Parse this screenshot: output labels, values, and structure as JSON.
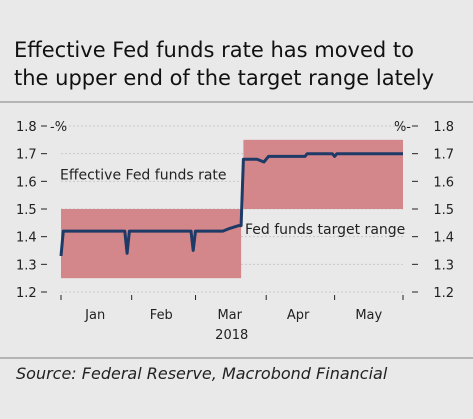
{
  "title": {
    "line1": "Effective Fed funds rate has moved to",
    "line2": "the upper end of the target range lately"
  },
  "source": "Source: Federal Reserve, Macrobond Financial",
  "colors": {
    "background": "#e9e9e9",
    "target_band": "#d4878a",
    "effr_line": "#1e3a66",
    "label_red": "#c0232a",
    "label_blue": "#1e3a66"
  },
  "chart_data": {
    "type": "line",
    "year_label": "2018",
    "x_labels": [
      "Jan",
      "Feb",
      "Mar",
      "Apr",
      "May"
    ],
    "y_ticks": [
      "1.2",
      "1.3",
      "1.4",
      "1.5",
      "1.6",
      "1.7",
      "1.8"
    ],
    "left_axis_unit": "-%",
    "right_axis_unit": "%-",
    "ylim": [
      1.2,
      1.8
    ],
    "x_range": [
      "2018-01-01",
      "2018-05-31"
    ],
    "grid": true,
    "series": [
      {
        "name": "Effective Fed funds rate",
        "kind": "line",
        "points": [
          [
            "2018-01-01",
            1.33
          ],
          [
            "2018-01-02",
            1.42
          ],
          [
            "2018-01-29",
            1.42
          ],
          [
            "2018-01-30",
            1.34
          ],
          [
            "2018-01-31",
            1.42
          ],
          [
            "2018-02-27",
            1.42
          ],
          [
            "2018-02-28",
            1.35
          ],
          [
            "2018-03-01",
            1.42
          ],
          [
            "2018-03-13",
            1.42
          ],
          [
            "2018-03-16",
            1.43
          ],
          [
            "2018-03-20",
            1.44
          ],
          [
            "2018-03-21",
            1.44
          ],
          [
            "2018-03-22",
            1.68
          ],
          [
            "2018-03-28",
            1.68
          ],
          [
            "2018-03-31",
            1.67
          ],
          [
            "2018-04-02",
            1.69
          ],
          [
            "2018-04-18",
            1.69
          ],
          [
            "2018-04-19",
            1.7
          ],
          [
            "2018-04-30",
            1.7
          ],
          [
            "2018-05-01",
            1.69
          ],
          [
            "2018-05-02",
            1.7
          ],
          [
            "2018-05-31",
            1.7
          ]
        ]
      },
      {
        "name": "Fed funds target range",
        "kind": "band",
        "segments": [
          {
            "from": "2018-01-01",
            "to": "2018-03-21",
            "lower": 1.25,
            "upper": 1.5
          },
          {
            "from": "2018-03-22",
            "to": "2018-05-31",
            "lower": 1.5,
            "upper": 1.75
          }
        ]
      }
    ]
  }
}
